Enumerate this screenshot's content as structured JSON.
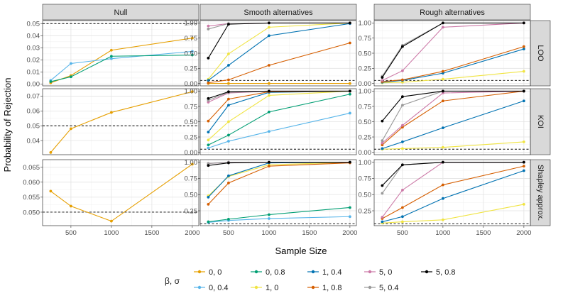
{
  "figure": {
    "xlabel": "Sample Size",
    "ylabel": "Probability of Rejection",
    "legend_title": "β, σ"
  },
  "chart_data": {
    "type": "line",
    "x": [
      250,
      500,
      1000,
      2000
    ],
    "xlim": [
      150,
      2080
    ],
    "xticks": [
      500,
      1000,
      1500,
      2000
    ],
    "columns": [
      "Null",
      "Smooth alternatives",
      "Rough alternatives"
    ],
    "rows": [
      "LOO",
      "KOI",
      "Shapley approx."
    ],
    "reference_line": 0.05,
    "legend_entries": [
      {
        "key": "0,0",
        "label": "0, 0",
        "color": "#E69F00"
      },
      {
        "key": "0,0.4",
        "label": "0, 0.4",
        "color": "#56B4E9"
      },
      {
        "key": "0,0.8",
        "label": "0, 0.8",
        "color": "#009E73"
      },
      {
        "key": "1,0",
        "label": "1, 0",
        "color": "#F0E442"
      },
      {
        "key": "1,0.4",
        "label": "1, 0.4",
        "color": "#0072B2"
      },
      {
        "key": "1,0.8",
        "label": "1, 0.8",
        "color": "#D55E00"
      },
      {
        "key": "5,0",
        "label": "5, 0",
        "color": "#CC79A7"
      },
      {
        "key": "5,0.4",
        "label": "5, 0.4",
        "color": "#999999"
      },
      {
        "key": "5,0.8",
        "label": "5, 0.8",
        "color": "#000000"
      }
    ],
    "panels": [
      {
        "id": "null-loo",
        "col": 0,
        "row": 0,
        "ylim": [
          -0.0015,
          0.0525
        ],
        "yticks": [
          0.0,
          0.01,
          0.02,
          0.03,
          0.04,
          0.05
        ],
        "yticklabels": [
          "0.00",
          "0.01",
          "0.02",
          "0.03",
          "0.04",
          "0.05"
        ],
        "series": [
          {
            "key": "0,0",
            "values": [
              0.001,
              0.007,
              0.028,
              0.038
            ]
          },
          {
            "key": "0,0.4",
            "values": [
              0.003,
              0.017,
              0.021,
              0.027
            ]
          },
          {
            "key": "0,0.8",
            "values": [
              0.002,
              0.006,
              0.023,
              0.024
            ]
          }
        ]
      },
      {
        "id": "null-koi",
        "col": 0,
        "row": 1,
        "ylim": [
          0.0305,
          0.075
        ],
        "yticks": [
          0.04,
          0.05,
          0.06,
          0.07
        ],
        "yticklabels": [
          "0.04",
          "0.05",
          "0.06",
          "0.07"
        ],
        "series": [
          {
            "key": "0,0",
            "values": [
              0.032,
              0.048,
              0.059,
              0.073
            ]
          }
        ]
      },
      {
        "id": "null-shap",
        "col": 0,
        "row": 2,
        "ylim": [
          0.0455,
          0.0675
        ],
        "yticks": [
          0.05,
          0.055,
          0.06,
          0.065
        ],
        "yticklabels": [
          "0.050",
          "0.055",
          "0.060",
          "0.065"
        ],
        "series": [
          {
            "key": "0,0",
            "values": [
              0.057,
              0.052,
              0.047,
              0.066
            ]
          }
        ]
      },
      {
        "id": "smooth-loo",
        "col": 1,
        "row": 0,
        "ylim": [
          -0.04,
          1.04
        ],
        "yticks": [
          0.0,
          0.25,
          0.5,
          0.75,
          1.0
        ],
        "yticklabels": [
          "0.00",
          "0.25",
          "0.50",
          "0.75",
          "1.00"
        ],
        "series": [
          {
            "key": "0,0",
            "values": [
              0.0,
              0.0,
              0.0,
              0.0
            ]
          },
          {
            "key": "1,0",
            "values": [
              0.07,
              0.49,
              0.93,
              1.0
            ]
          },
          {
            "key": "1,0.4",
            "values": [
              0.05,
              0.3,
              0.79,
              0.99
            ]
          },
          {
            "key": "1,0.8",
            "values": [
              0.01,
              0.06,
              0.3,
              0.67
            ]
          },
          {
            "key": "5,0",
            "values": [
              0.95,
              0.99,
              1.0,
              1.0
            ]
          },
          {
            "key": "5,0.4",
            "values": [
              0.9,
              0.99,
              1.0,
              1.0
            ]
          },
          {
            "key": "5,0.8",
            "values": [
              0.42,
              0.98,
              1.0,
              1.0
            ]
          }
        ]
      },
      {
        "id": "smooth-koi",
        "col": 1,
        "row": 1,
        "ylim": [
          -0.04,
          1.04
        ],
        "yticks": [
          0.0,
          0.25,
          0.5,
          0.75,
          1.0
        ],
        "yticklabels": [
          "0.00",
          "0.25",
          "0.50",
          "0.75",
          "1.00"
        ],
        "series": [
          {
            "key": "0,0.4",
            "values": [
              0.07,
              0.18,
              0.34,
              0.64
            ]
          },
          {
            "key": "0,0.8",
            "values": [
              0.12,
              0.28,
              0.66,
              0.95
            ]
          },
          {
            "key": "1,0",
            "values": [
              0.2,
              0.5,
              0.93,
              1.0
            ]
          },
          {
            "key": "1,0.4",
            "values": [
              0.33,
              0.77,
              0.98,
              1.0
            ]
          },
          {
            "key": "1,0.8",
            "values": [
              0.51,
              0.87,
              0.99,
              1.0
            ]
          },
          {
            "key": "5,0",
            "values": [
              0.82,
              0.97,
              1.0,
              1.0
            ]
          },
          {
            "key": "5,0.4",
            "values": [
              0.85,
              0.98,
              1.0,
              1.0
            ]
          },
          {
            "key": "5,0.8",
            "values": [
              0.88,
              0.99,
              1.0,
              1.0
            ]
          }
        ]
      },
      {
        "id": "smooth-shap",
        "col": 1,
        "row": 2,
        "ylim": [
          0.02,
          1.04
        ],
        "yticks": [
          0.25,
          0.5,
          0.75,
          1.0
        ],
        "yticklabels": [
          "0.25",
          "0.50",
          "0.75",
          "1.00"
        ],
        "series": [
          {
            "key": "0,0.4",
            "values": [
              0.07,
              0.1,
              0.13,
              0.16
            ]
          },
          {
            "key": "0,0.8",
            "values": [
              0.08,
              0.12,
              0.19,
              0.3
            ]
          },
          {
            "key": "1,0",
            "values": [
              0.48,
              0.78,
              0.96,
              1.0
            ]
          },
          {
            "key": "1,0.4",
            "values": [
              0.46,
              0.79,
              0.99,
              1.0
            ]
          },
          {
            "key": "1,0.8",
            "values": [
              0.35,
              0.68,
              0.94,
              0.99
            ]
          },
          {
            "key": "5,0",
            "values": [
              0.98,
              1.0,
              1.0,
              1.0
            ]
          },
          {
            "key": "5,0.4",
            "values": [
              0.98,
              1.0,
              1.0,
              1.0
            ]
          },
          {
            "key": "5,0.8",
            "values": [
              0.95,
              0.99,
              1.0,
              1.0
            ]
          }
        ]
      },
      {
        "id": "rough-loo",
        "col": 2,
        "row": 0,
        "ylim": [
          -0.04,
          1.04
        ],
        "yticks": [
          0.0,
          0.25,
          0.5,
          0.75,
          1.0
        ],
        "yticklabels": [
          "0.00",
          "0.25",
          "0.50",
          "0.75",
          "1.00"
        ],
        "series": [
          {
            "key": "1,0",
            "values": [
              0.01,
              0.02,
              0.07,
              0.2
            ]
          },
          {
            "key": "1,0.4",
            "values": [
              0.02,
              0.05,
              0.17,
              0.57
            ]
          },
          {
            "key": "1,0.8",
            "values": [
              0.03,
              0.06,
              0.2,
              0.61
            ]
          },
          {
            "key": "5,0",
            "values": [
              0.05,
              0.21,
              0.93,
              1.0
            ]
          },
          {
            "key": "5,0.4",
            "values": [
              0.12,
              0.63,
              1.0,
              1.0
            ]
          },
          {
            "key": "5,0.8",
            "values": [
              0.1,
              0.61,
              1.0,
              1.0
            ]
          }
        ]
      },
      {
        "id": "rough-koi",
        "col": 2,
        "row": 1,
        "ylim": [
          -0.04,
          1.04
        ],
        "yticks": [
          0.0,
          0.25,
          0.5,
          0.75,
          1.0
        ],
        "yticklabels": [
          "0.00",
          "0.25",
          "0.50",
          "0.75",
          "1.00"
        ],
        "series": [
          {
            "key": "1,0",
            "values": [
              0.05,
              0.06,
              0.08,
              0.17
            ]
          },
          {
            "key": "1,0.4",
            "values": [
              0.06,
              0.17,
              0.4,
              0.84
            ]
          },
          {
            "key": "1,0.8",
            "values": [
              0.12,
              0.41,
              0.84,
              1.0
            ]
          },
          {
            "key": "5,0",
            "values": [
              0.15,
              0.44,
              0.97,
              1.0
            ]
          },
          {
            "key": "5,0.4",
            "values": [
              0.19,
              0.77,
              1.0,
              1.0
            ]
          },
          {
            "key": "5,0.8",
            "values": [
              0.51,
              0.91,
              1.0,
              1.0
            ]
          }
        ]
      },
      {
        "id": "rough-shap",
        "col": 2,
        "row": 2,
        "ylim": [
          0.02,
          1.04
        ],
        "yticks": [
          0.25,
          0.5,
          0.75,
          1.0
        ],
        "yticklabels": [
          "0.25",
          "0.50",
          "0.75",
          "1.00"
        ],
        "series": [
          {
            "key": "1,0",
            "values": [
              0.06,
              0.08,
              0.11,
              0.35
            ]
          },
          {
            "key": "1,0.4",
            "values": [
              0.08,
              0.16,
              0.44,
              0.87
            ]
          },
          {
            "key": "1,0.8",
            "values": [
              0.13,
              0.3,
              0.65,
              0.94
            ]
          },
          {
            "key": "5,0",
            "values": [
              0.15,
              0.57,
              1.0,
              1.0
            ]
          },
          {
            "key": "5,0.4",
            "values": [
              0.52,
              0.96,
              1.0,
              1.0
            ]
          },
          {
            "key": "5,0.8",
            "values": [
              0.64,
              0.96,
              1.0,
              1.0
            ]
          }
        ]
      }
    ]
  }
}
